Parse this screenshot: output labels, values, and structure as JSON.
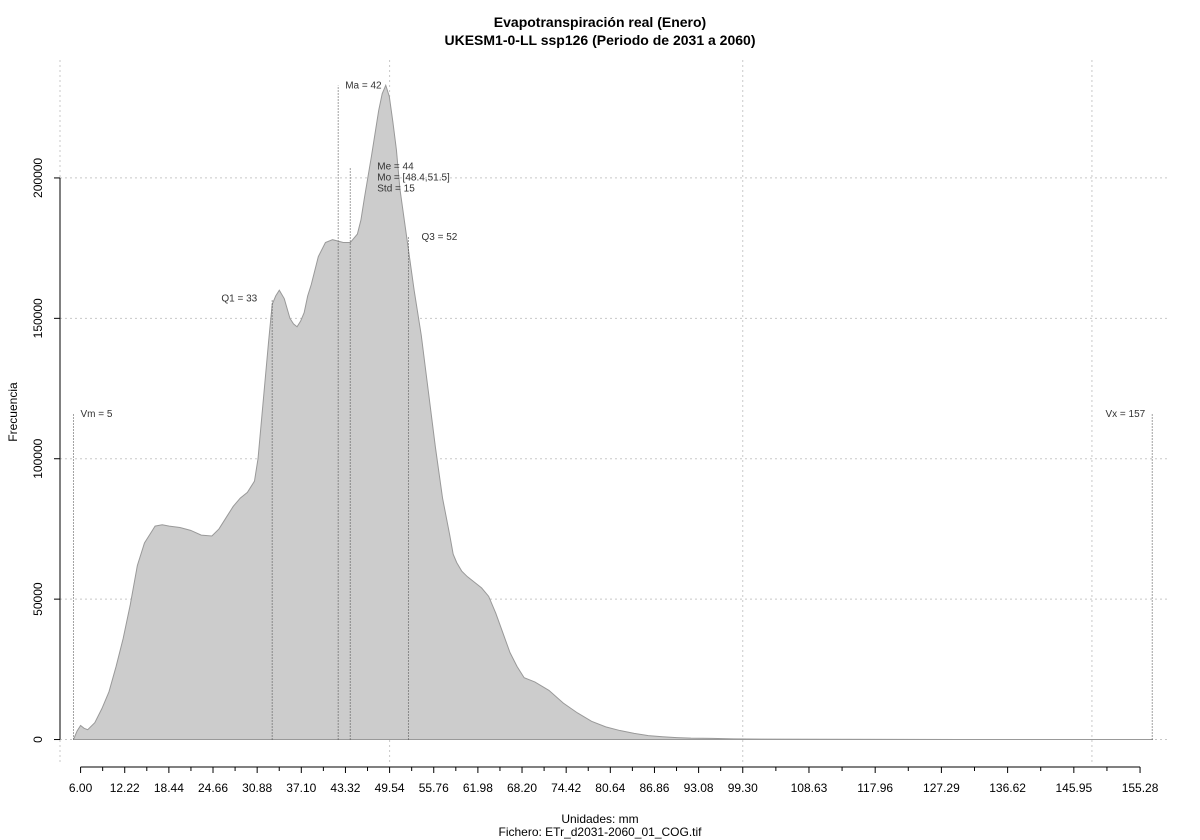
{
  "chart_data": {
    "type": "area",
    "title": "Evapotranspiración real (Enero)",
    "subtitle": "UKESM1-0-LL ssp126 (Periodo de 2031 a 2060)",
    "xlabel": "Unidades: mm",
    "ylabel": "Frecuencia",
    "footer": "Fichero: ETr_d2031-2060_01_COG.tif",
    "xlim": [
      3.1,
      159.5
    ],
    "ylim": [
      -8000,
      242000
    ],
    "grid": true,
    "fill_color": "#cccccc",
    "line_color": "#999999",
    "x_ticks": [
      "6.00",
      "12.22",
      "18.44",
      "24.66",
      "30.88",
      "37.10",
      "43.32",
      "49.54",
      "55.76",
      "61.98",
      "68.20",
      "74.42",
      "80.64",
      "86.86",
      "93.08",
      "99.30",
      "108.63",
      "117.96",
      "127.29",
      "136.62",
      "145.95",
      "155.28"
    ],
    "x_tick_values": [
      6.0,
      12.22,
      18.44,
      24.66,
      30.88,
      37.1,
      43.32,
      49.54,
      55.76,
      61.98,
      68.2,
      74.42,
      80.64,
      86.86,
      93.08,
      99.3,
      108.63,
      117.96,
      127.29,
      136.62,
      145.95,
      155.28
    ],
    "y_ticks": [
      "0",
      "50000",
      "100000",
      "150000",
      "200000"
    ],
    "y_tick_values": [
      0,
      50000,
      100000,
      150000,
      200000
    ],
    "x": [
      5.0,
      5.5,
      6.0,
      6.5,
      7.0,
      8.0,
      9.0,
      10.0,
      11.0,
      12.0,
      13.0,
      14.0,
      15.0,
      16.0,
      16.5,
      17.5,
      18.5,
      20.0,
      21.5,
      23.0,
      24.5,
      25.5,
      26.5,
      27.5,
      28.5,
      29.5,
      30.5,
      31.0,
      31.5,
      32.0,
      32.5,
      33.0,
      33.5,
      34.0,
      34.7,
      35.5,
      36.0,
      36.5,
      37.0,
      37.5,
      38.0,
      38.5,
      39.5,
      40.5,
      41.5,
      42.3,
      43.0,
      44.0,
      45.0,
      45.5,
      46.0,
      47.0,
      48.0,
      48.5,
      49.0,
      49.5,
      50.0,
      50.5,
      51.0,
      52.0,
      53.0,
      54.0,
      55.0,
      56.0,
      57.0,
      58.0,
      58.5,
      59.0,
      59.7,
      60.5,
      61.5,
      62.5,
      63.5,
      64.5,
      65.5,
      66.5,
      67.5,
      68.5,
      70.0,
      72.0,
      74.0,
      76.0,
      78.0,
      80.0,
      82.0,
      84.0,
      86.0,
      88.0,
      90.0,
      92.0,
      95.0,
      98.0,
      102.0,
      110.0,
      120.0,
      130.0,
      140.0,
      150.0,
      157.0
    ],
    "y": [
      0,
      3000,
      5000,
      4000,
      3500,
      6000,
      11000,
      17000,
      26000,
      36000,
      48000,
      62000,
      70000,
      74000,
      76000,
      76500,
      76000,
      75500,
      74500,
      72800,
      72500,
      75000,
      79000,
      83000,
      86000,
      88000,
      92000,
      100000,
      114000,
      128000,
      142000,
      155000,
      158000,
      160000,
      157000,
      150000,
      148000,
      147000,
      149000,
      152000,
      158000,
      162000,
      172000,
      177000,
      178000,
      177500,
      177000,
      177000,
      180000,
      185000,
      193000,
      208000,
      224000,
      230000,
      233000,
      229000,
      220000,
      210000,
      196000,
      178000,
      160000,
      144000,
      124000,
      104000,
      86000,
      73000,
      66000,
      63000,
      60000,
      58000,
      56000,
      54000,
      51000,
      45000,
      38000,
      31000,
      26000,
      22000,
      20500,
      17500,
      13000,
      9500,
      6500,
      4500,
      3200,
      2200,
      1400,
      1000,
      700,
      500,
      400,
      250,
      150,
      80,
      50,
      30,
      20,
      10,
      0
    ],
    "markers": [
      {
        "label": "Vm = 5",
        "x": 5.0,
        "y_top": 116000
      },
      {
        "label": "Q1 = 33",
        "x": 33.0,
        "y_top": 157000
      },
      {
        "label": "Ma = 42",
        "x": 42.3,
        "y_top": 233000
      },
      {
        "label": "Me = 44",
        "x": 44.0,
        "y_top": 204000
      },
      {
        "label": "Mo = [48.4,51.5]",
        "x": 44.0,
        "y_top": 204000
      },
      {
        "label": "Std = 15",
        "x": 44.0,
        "y_top": 204000
      },
      {
        "label": "Q3 = 52",
        "x": 52.2,
        "y_top": 179000
      },
      {
        "label": "Vx = 157",
        "x": 157.0,
        "y_top": 116000
      }
    ]
  }
}
